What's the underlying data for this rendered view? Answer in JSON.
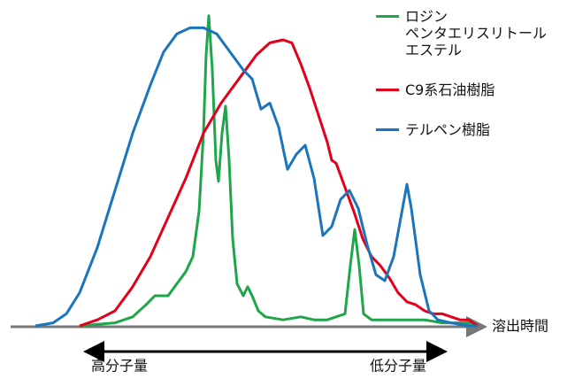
{
  "chart_data": {
    "type": "line",
    "xlabel": "溶出時間",
    "xlim": [
      0,
      100
    ],
    "ylim": [
      0,
      105
    ],
    "annotations": [
      "高分子量",
      "低分子量"
    ],
    "series": [
      {
        "name": "ロジン\nペンタエリスリトール\nエステル",
        "color": "#1fa64a",
        "x": [
          10,
          18,
          22,
          25,
          27,
          30,
          32,
          34,
          35.6,
          37,
          38,
          38.6,
          39.2,
          40,
          40.8,
          41.4,
          42.2,
          43,
          43.8,
          44.6,
          45.6,
          47,
          48,
          49,
          50.4,
          52,
          56,
          60,
          63,
          66,
          68,
          70,
          71.2,
          72.2,
          73.2,
          74.2,
          76,
          80,
          84,
          88,
          92,
          98,
          100
        ],
        "values": [
          0,
          1,
          3,
          7,
          10,
          10,
          14,
          18,
          23,
          38,
          64,
          90,
          103,
          85,
          55,
          48,
          64,
          73,
          55,
          29,
          14,
          10,
          13,
          10,
          5,
          3,
          2,
          3,
          2,
          2,
          3,
          4,
          20,
          32,
          20,
          4,
          2,
          2,
          2,
          2,
          1,
          1,
          0
        ]
      },
      {
        "name": "C9系石油樹脂",
        "color": "#e2001a",
        "x": [
          10,
          14,
          18,
          22,
          26,
          30,
          34,
          38,
          42,
          46,
          50,
          53,
          56,
          58,
          60,
          62,
          64,
          66,
          67,
          68,
          70,
          72,
          74,
          76,
          78,
          80,
          82,
          84,
          86,
          88,
          90,
          92,
          94,
          96,
          98,
          100
        ],
        "values": [
          0,
          2,
          5,
          13,
          23,
          36,
          49,
          64,
          74,
          82,
          90,
          94,
          95,
          94,
          87,
          79,
          70,
          61,
          55,
          54,
          46,
          38,
          29,
          23,
          20,
          16,
          11,
          8,
          7,
          5,
          4,
          4,
          3,
          2,
          2,
          0
        ]
      },
      {
        "name": "テルペン樹脂",
        "color": "#1b75bc",
        "x": [
          0,
          4,
          7,
          10,
          14,
          18,
          22,
          26,
          29,
          32,
          35,
          38,
          41,
          44,
          47,
          49,
          51,
          53,
          55,
          57,
          59,
          61,
          63,
          65,
          67,
          69,
          71,
          73,
          75,
          77,
          79,
          81,
          83,
          84,
          85,
          87,
          89,
          91,
          94,
          98,
          100
        ],
        "values": [
          0,
          1,
          4,
          11,
          26,
          45,
          64,
          80,
          91,
          97,
          99,
          99,
          97,
          91,
          85,
          82,
          72,
          74,
          66,
          52,
          57,
          60,
          49,
          30,
          33,
          42,
          45,
          39,
          27,
          17,
          15,
          23,
          39,
          47,
          39,
          17,
          5,
          2,
          1,
          0,
          0
        ]
      }
    ]
  }
}
